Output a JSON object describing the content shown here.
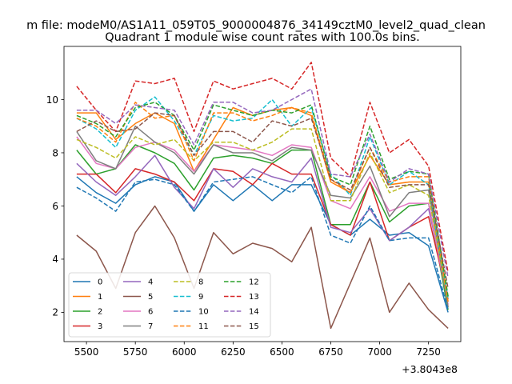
{
  "suptitle": "m file: modeM0/AS1A11_059T05_9000004876_34149cztM0_level2_quad_clean",
  "chart_data": {
    "type": "line",
    "title": "Quadrant 1 module wise count rates with 100.0s bins.",
    "xlabel": "",
    "ylabel": "",
    "x_offset_label": "+3.8043e8",
    "x": [
      5450,
      5550,
      5650,
      5750,
      5850,
      5950,
      6050,
      6150,
      6250,
      6350,
      6450,
      6550,
      6650,
      6750,
      6850,
      6950,
      7050,
      7150,
      7250,
      7350
    ],
    "xlim": [
      5385,
      7415
    ],
    "ylim": [
      0.9,
      12.0
    ],
    "xticks": [
      5500,
      5750,
      6000,
      6250,
      6500,
      6750,
      7000,
      7250
    ],
    "yticks": [
      2,
      4,
      6,
      8,
      10
    ],
    "grid": false,
    "legend_position": "lower-left",
    "series": [
      {
        "name": "0",
        "color": "#1f77b4",
        "dash": "solid",
        "values": [
          7.1,
          6.5,
          6.1,
          6.8,
          7.1,
          6.9,
          5.8,
          6.8,
          6.2,
          6.8,
          6.2,
          6.8,
          6.8,
          5.3,
          4.9,
          5.5,
          4.9,
          5.0,
          4.5,
          2.0
        ]
      },
      {
        "name": "1",
        "color": "#ff7f0e",
        "dash": "solid",
        "values": [
          9.5,
          9.5,
          8.5,
          9.1,
          9.5,
          9.1,
          7.3,
          8.5,
          9.7,
          9.4,
          9.6,
          9.7,
          9.4,
          6.9,
          6.5,
          7.9,
          6.8,
          6.9,
          6.9,
          2.2
        ]
      },
      {
        "name": "2",
        "color": "#2ca02c",
        "dash": "solid",
        "values": [
          8.1,
          7.2,
          7.4,
          8.3,
          8.0,
          7.6,
          6.6,
          7.8,
          7.9,
          7.8,
          7.6,
          8.1,
          8.1,
          5.3,
          5.3,
          6.9,
          5.4,
          6.0,
          6.1,
          2.1
        ]
      },
      {
        "name": "3",
        "color": "#d62728",
        "dash": "solid",
        "values": [
          7.2,
          7.2,
          6.5,
          7.4,
          7.2,
          6.9,
          6.2,
          7.4,
          7.3,
          6.8,
          7.6,
          7.2,
          7.2,
          5.3,
          4.9,
          6.9,
          4.7,
          5.2,
          5.6,
          2.5
        ]
      },
      {
        "name": "4",
        "color": "#9467bd",
        "dash": "solid",
        "values": [
          7.6,
          6.9,
          6.4,
          7.1,
          7.9,
          6.7,
          5.9,
          7.4,
          6.7,
          7.4,
          7.1,
          6.9,
          7.8,
          5.2,
          5.0,
          5.9,
          4.7,
          5.2,
          5.9,
          2.6
        ]
      },
      {
        "name": "5",
        "color": "#8c564b",
        "dash": "solid",
        "values": [
          4.9,
          4.3,
          2.9,
          5.0,
          6.0,
          4.8,
          2.9,
          5.0,
          4.2,
          4.6,
          4.4,
          3.9,
          5.2,
          1.4,
          3.1,
          4.8,
          2.0,
          3.1,
          2.1,
          1.4
        ]
      },
      {
        "name": "6",
        "color": "#e377c2",
        "dash": "solid",
        "values": [
          8.6,
          7.6,
          7.4,
          8.2,
          8.4,
          8.1,
          7.3,
          8.3,
          8.2,
          8.1,
          7.9,
          8.3,
          8.2,
          6.2,
          5.9,
          7.1,
          5.8,
          6.1,
          6.1,
          2.3
        ]
      },
      {
        "name": "7",
        "color": "#7f7f7f",
        "dash": "solid",
        "values": [
          8.8,
          7.7,
          7.4,
          9.0,
          8.4,
          8.0,
          7.2,
          8.3,
          8.0,
          8.0,
          7.7,
          8.2,
          8.1,
          6.4,
          6.3,
          7.5,
          5.6,
          6.5,
          6.6,
          2.2
        ]
      },
      {
        "name": "8",
        "color": "#bcbd22",
        "dash": "dashed",
        "values": [
          8.5,
          8.2,
          7.8,
          8.6,
          8.3,
          8.5,
          7.7,
          8.4,
          8.4,
          8.1,
          8.4,
          8.9,
          8.9,
          6.2,
          6.2,
          8.0,
          6.5,
          6.8,
          6.4,
          2.4
        ]
      },
      {
        "name": "9",
        "color": "#17becf",
        "dash": "dashed",
        "values": [
          9.3,
          8.9,
          8.2,
          9.6,
          10.1,
          9.2,
          7.9,
          9.4,
          9.2,
          9.3,
          10.0,
          9.0,
          9.7,
          7.2,
          6.4,
          8.6,
          6.8,
          7.3,
          6.8,
          2.5
        ]
      },
      {
        "name": "10",
        "color": "#1f77b4",
        "dash": "dashed",
        "values": [
          6.7,
          6.3,
          5.8,
          6.9,
          7.0,
          6.8,
          5.8,
          6.9,
          7.0,
          7.1,
          6.8,
          6.5,
          7.1,
          4.9,
          4.6,
          6.0,
          4.7,
          4.8,
          4.8,
          2.1
        ]
      },
      {
        "name": "11",
        "color": "#ff7f0e",
        "dash": "dashed",
        "values": [
          9.3,
          9.0,
          8.4,
          9.9,
          9.3,
          9.4,
          7.7,
          9.5,
          9.5,
          9.2,
          9.4,
          9.7,
          9.5,
          7.0,
          6.5,
          8.2,
          6.9,
          7.1,
          7.1,
          2.4
        ]
      },
      {
        "name": "12",
        "color": "#2ca02c",
        "dash": "dashed",
        "values": [
          9.4,
          9.1,
          8.6,
          9.7,
          9.9,
          9.4,
          8.1,
          9.8,
          9.6,
          9.4,
          9.6,
          9.5,
          9.8,
          7.1,
          6.8,
          9.0,
          7.0,
          7.3,
          7.2,
          2.6
        ]
      },
      {
        "name": "13",
        "color": "#d62728",
        "dash": "dashed",
        "values": [
          10.5,
          9.6,
          8.8,
          10.7,
          10.6,
          10.8,
          8.8,
          10.7,
          10.4,
          10.6,
          10.8,
          10.4,
          11.4,
          7.8,
          7.1,
          9.9,
          8.0,
          8.5,
          7.5,
          3.5
        ]
      },
      {
        "name": "14",
        "color": "#9467bd",
        "dash": "dashed",
        "values": [
          9.6,
          9.6,
          9.1,
          9.8,
          9.7,
          9.6,
          8.3,
          9.9,
          9.9,
          9.5,
          9.6,
          10.0,
          10.4,
          7.2,
          7.1,
          8.7,
          6.9,
          7.4,
          7.2,
          3.3
        ]
      },
      {
        "name": "15",
        "color": "#8c564b",
        "dash": "dashed",
        "values": [
          8.8,
          9.2,
          8.8,
          8.9,
          9.5,
          9.4,
          7.9,
          8.8,
          8.8,
          8.4,
          9.2,
          9.0,
          9.3,
          7.0,
          6.6,
          8.2,
          6.7,
          6.8,
          6.8,
          2.9
        ]
      }
    ]
  }
}
